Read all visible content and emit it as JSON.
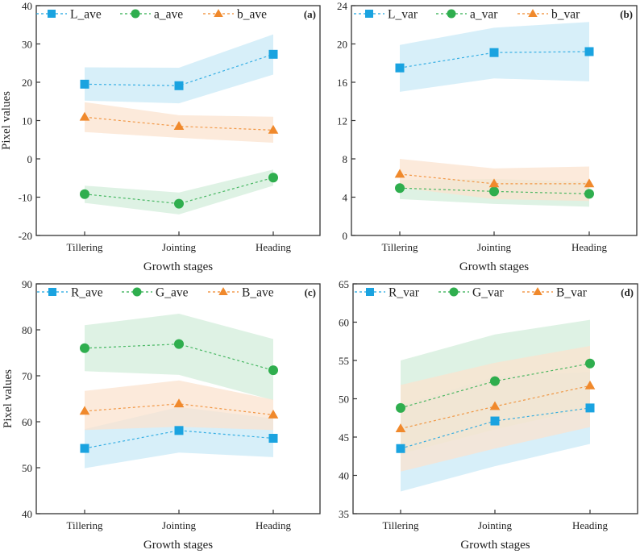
{
  "chart_data": [
    {
      "type": "line",
      "panel": "(a)",
      "categories": [
        "Tillering",
        "Jointing",
        "Heading"
      ],
      "xlabel": "Growth stages",
      "ylabel": "Pixel values",
      "ylim": [
        -20,
        40
      ],
      "yticks": [
        -20,
        -10,
        0,
        10,
        20,
        30,
        40
      ],
      "legend_position": "top",
      "series": [
        {
          "name": "L_ave",
          "marker": "square",
          "color": "#1aa3e0",
          "band_color": "#c9e9f7",
          "values": [
            19.5,
            19.1,
            27.3
          ],
          "band_low": [
            15.2,
            14.5,
            22.0
          ],
          "band_high": [
            23.9,
            23.8,
            32.5
          ]
        },
        {
          "name": "a_ave",
          "marker": "circle",
          "color": "#2fae4e",
          "band_color": "#d3eedb",
          "values": [
            -9.2,
            -11.7,
            -4.9
          ],
          "band_low": [
            -11.5,
            -14.5,
            -7.0
          ],
          "band_high": [
            -7.0,
            -8.8,
            -2.8
          ]
        },
        {
          "name": "b_ave",
          "marker": "triangle",
          "color": "#f0892c",
          "band_color": "#fbe3cf",
          "values": [
            10.9,
            8.5,
            7.5
          ],
          "band_low": [
            7.0,
            5.5,
            4.2
          ],
          "band_high": [
            14.8,
            11.4,
            11.0
          ]
        }
      ]
    },
    {
      "type": "line",
      "panel": "(b)",
      "categories": [
        "Tillering",
        "Jointing",
        "Heading"
      ],
      "xlabel": "Growth stages",
      "ylabel": "",
      "ylim": [
        0,
        24
      ],
      "yticks": [
        0,
        4,
        8,
        12,
        16,
        20,
        24
      ],
      "legend_position": "top",
      "series": [
        {
          "name": "L_var",
          "marker": "square",
          "color": "#1aa3e0",
          "band_color": "#c9e9f7",
          "values": [
            17.5,
            19.1,
            19.2
          ],
          "band_low": [
            15.0,
            16.4,
            16.1
          ],
          "band_high": [
            19.9,
            21.7,
            22.3
          ]
        },
        {
          "name": "a_var",
          "marker": "circle",
          "color": "#2fae4e",
          "band_color": "#d3eedb",
          "values": [
            4.95,
            4.6,
            4.35
          ],
          "band_low": [
            3.8,
            3.3,
            3.0
          ],
          "band_high": [
            5.8,
            5.9,
            5.6
          ]
        },
        {
          "name": "b_var",
          "marker": "triangle",
          "color": "#f0892c",
          "band_color": "#fbe3cf",
          "values": [
            6.4,
            5.4,
            5.4
          ],
          "band_low": [
            5.0,
            3.8,
            3.6
          ],
          "band_high": [
            8.0,
            7.0,
            7.2
          ]
        }
      ]
    },
    {
      "type": "line",
      "panel": "(c)",
      "categories": [
        "Tillering",
        "Jointing",
        "Heading"
      ],
      "xlabel": "Growth stages",
      "ylabel": "Pixel values",
      "ylim": [
        40,
        90
      ],
      "yticks": [
        40,
        50,
        60,
        70,
        80,
        90
      ],
      "legend_position": "top",
      "series": [
        {
          "name": "R_ave",
          "marker": "square",
          "color": "#1aa3e0",
          "band_color": "#c9e9f7",
          "values": [
            54.2,
            58.1,
            56.4
          ],
          "band_low": [
            49.9,
            53.3,
            52.3
          ],
          "band_high": [
            58.4,
            63.2,
            60.7
          ]
        },
        {
          "name": "G_ave",
          "marker": "circle",
          "color": "#2fae4e",
          "band_color": "#d3eedb",
          "values": [
            76.0,
            76.9,
            71.2
          ],
          "band_low": [
            71.0,
            70.2,
            64.7
          ],
          "band_high": [
            81.0,
            83.5,
            78.0
          ]
        },
        {
          "name": "B_ave",
          "marker": "triangle",
          "color": "#f0892c",
          "band_color": "#fbe3cf",
          "values": [
            62.3,
            63.9,
            61.5
          ],
          "band_low": [
            58.2,
            58.9,
            58.2
          ],
          "band_high": [
            66.7,
            69.0,
            64.8
          ]
        }
      ]
    },
    {
      "type": "line",
      "panel": "(d)",
      "categories": [
        "Tillering",
        "Jointing",
        "Heading"
      ],
      "xlabel": "Growth stages",
      "ylabel": "",
      "ylim": [
        35,
        65
      ],
      "yticks": [
        35,
        40,
        45,
        50,
        55,
        60,
        65
      ],
      "legend_position": "top",
      "series": [
        {
          "name": "R_var",
          "marker": "square",
          "color": "#1aa3e0",
          "band_color": "#c9e9f7",
          "values": [
            43.5,
            47.1,
            48.8
          ],
          "band_low": [
            37.9,
            41.2,
            44.1
          ],
          "band_high": [
            49.1,
            52.9,
            53.5
          ]
        },
        {
          "name": "G_var",
          "marker": "circle",
          "color": "#2fae4e",
          "band_color": "#d3eedb",
          "values": [
            48.8,
            52.3,
            54.6
          ],
          "band_low": [
            42.8,
            46.0,
            48.8
          ],
          "band_high": [
            55.0,
            58.4,
            60.3
          ]
        },
        {
          "name": "B_var",
          "marker": "triangle",
          "color": "#f0892c",
          "band_color": "#fbe3cf",
          "values": [
            46.1,
            49.0,
            51.7
          ],
          "band_low": [
            40.5,
            43.5,
            46.3
          ],
          "band_high": [
            51.8,
            54.7,
            56.9
          ]
        }
      ]
    }
  ]
}
